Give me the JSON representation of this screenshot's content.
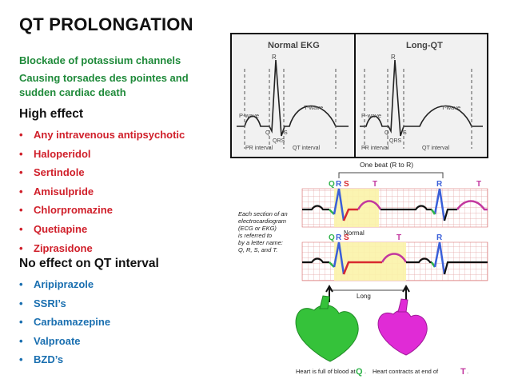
{
  "title": "QT PROLONGATION",
  "subtitle_lines": [
    "Blockade of potassium channels",
    "Causing torsades des pointes and",
    "sudden cardiac death"
  ],
  "high_effect": {
    "heading": "High effect",
    "items": [
      "Any intravenous antipsychotic",
      "Haloperidol",
      "Sertindole",
      "Amisulpride",
      "Chlorpromazine",
      "Quetiapine",
      "Ziprasidone"
    ]
  },
  "no_effect": {
    "heading": "No effect on QT interval",
    "items": [
      "Aripiprazole",
      "SSRI’s",
      "Carbamazepine",
      "Valproate",
      "BZD’s"
    ]
  },
  "bullet": "•",
  "ekg_panel": {
    "normal_title": "Normal EKG",
    "long_title": "Long-QT",
    "r": "R",
    "p_wave": "P-wave",
    "q": "Q",
    "s": "S",
    "qrs": "QRS",
    "t_wave": "T-wave",
    "pr_interval": "PR interval",
    "qt_interval": "QT interval"
  },
  "ecg_diagram": {
    "one_beat": "One beat (R to R)",
    "q": "Q",
    "r": "R",
    "s": "S",
    "t": "T",
    "caption_lines": [
      "Each section of an",
      "electrocardiogram",
      "(ECG or EKG)",
      "is referred to",
      "by a letter name:",
      "Q, R, S, and T."
    ],
    "normal": "Normal",
    "long": "Long",
    "heart_full": "Heart is full of blood at",
    "heart_contracts": "Heart contracts at end of",
    "colors": {
      "q": "#2fb34a",
      "r": "#3a5fd9",
      "s": "#d8292f",
      "t": "#c2379f",
      "highlight": "#fbf3a8"
    }
  }
}
